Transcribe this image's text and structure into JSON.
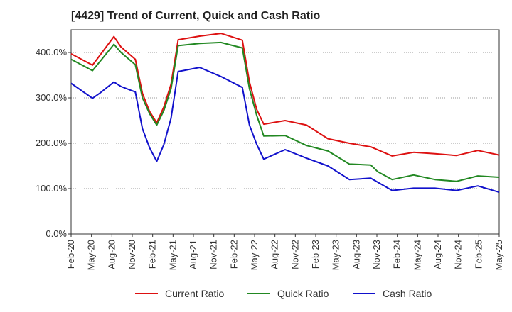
{
  "chart_data": {
    "type": "line",
    "title": "[4429]  Trend of Current, Quick and Cash Ratio",
    "xlabel": "",
    "ylabel": "",
    "ylim": [
      0,
      450
    ],
    "yticks": [
      0,
      100,
      200,
      300,
      400
    ],
    "ytick_labels": [
      "0.0%",
      "100.0%",
      "200.0%",
      "300.0%",
      "400.0%"
    ],
    "x_tick_labels": [
      "Feb-20",
      "May-20",
      "Aug-20",
      "Nov-20",
      "Feb-21",
      "May-21",
      "Aug-21",
      "Nov-21",
      "Feb-22",
      "May-22",
      "Aug-22",
      "Nov-22",
      "Feb-23",
      "May-23",
      "Aug-23",
      "Nov-23",
      "Feb-24",
      "May-24",
      "Aug-24",
      "Nov-24",
      "Feb-25",
      "May-25"
    ],
    "x": [
      0,
      1,
      2,
      3,
      4,
      5,
      6,
      7,
      8,
      9,
      10,
      11,
      12,
      13,
      14,
      15,
      16,
      17,
      18,
      19,
      20,
      21,
      22,
      23,
      24,
      25,
      26,
      27,
      28,
      29,
      30,
      31,
      32,
      33,
      34,
      35,
      36,
      37,
      38,
      39,
      40,
      41,
      42,
      43,
      44,
      45,
      46,
      47,
      48,
      49,
      50,
      51,
      52,
      53,
      54,
      55,
      56,
      57,
      58,
      59,
      60
    ],
    "grid": true,
    "legend_position": "bottom",
    "series": [
      {
        "name": "Current Ratio",
        "color": "#dd1111",
        "points": [
          [
            0,
            397
          ],
          [
            3,
            372
          ],
          [
            6,
            435
          ],
          [
            7,
            412
          ],
          [
            9,
            385
          ],
          [
            10,
            310
          ],
          [
            11,
            270
          ],
          [
            12,
            245
          ],
          [
            13,
            280
          ],
          [
            14,
            330
          ],
          [
            15,
            428
          ],
          [
            18,
            436
          ],
          [
            21,
            442
          ],
          [
            24,
            427
          ],
          [
            25,
            335
          ],
          [
            26,
            275
          ],
          [
            27,
            242
          ],
          [
            30,
            250
          ],
          [
            33,
            240
          ],
          [
            36,
            210
          ],
          [
            39,
            200
          ],
          [
            42,
            192
          ],
          [
            45,
            172
          ],
          [
            48,
            180
          ],
          [
            51,
            177
          ],
          [
            54,
            173
          ],
          [
            57,
            184
          ],
          [
            60,
            174
          ]
        ]
      },
      {
        "name": "Quick Ratio",
        "color": "#228822",
        "points": [
          [
            0,
            385
          ],
          [
            3,
            360
          ],
          [
            6,
            418
          ],
          [
            7,
            400
          ],
          [
            9,
            373
          ],
          [
            10,
            300
          ],
          [
            11,
            265
          ],
          [
            12,
            240
          ],
          [
            13,
            272
          ],
          [
            14,
            320
          ],
          [
            15,
            415
          ],
          [
            18,
            420
          ],
          [
            21,
            422
          ],
          [
            24,
            410
          ],
          [
            25,
            320
          ],
          [
            26,
            262
          ],
          [
            27,
            216
          ],
          [
            30,
            217
          ],
          [
            33,
            195
          ],
          [
            36,
            183
          ],
          [
            39,
            154
          ],
          [
            42,
            152
          ],
          [
            43,
            137
          ],
          [
            45,
            120
          ],
          [
            48,
            130
          ],
          [
            51,
            120
          ],
          [
            54,
            116
          ],
          [
            57,
            128
          ],
          [
            60,
            125
          ]
        ]
      },
      {
        "name": "Cash Ratio",
        "color": "#1111cc",
        "points": [
          [
            0,
            332
          ],
          [
            3,
            299
          ],
          [
            4,
            310
          ],
          [
            6,
            335
          ],
          [
            7,
            325
          ],
          [
            9,
            313
          ],
          [
            10,
            232
          ],
          [
            11,
            190
          ],
          [
            12,
            160
          ],
          [
            13,
            197
          ],
          [
            14,
            255
          ],
          [
            15,
            358
          ],
          [
            18,
            367
          ],
          [
            21,
            347
          ],
          [
            24,
            323
          ],
          [
            25,
            240
          ],
          [
            26,
            198
          ],
          [
            27,
            165
          ],
          [
            30,
            186
          ],
          [
            33,
            167
          ],
          [
            36,
            150
          ],
          [
            39,
            120
          ],
          [
            42,
            123
          ],
          [
            45,
            96
          ],
          [
            48,
            101
          ],
          [
            51,
            101
          ],
          [
            54,
            96
          ],
          [
            57,
            106
          ],
          [
            60,
            92
          ]
        ]
      }
    ]
  }
}
